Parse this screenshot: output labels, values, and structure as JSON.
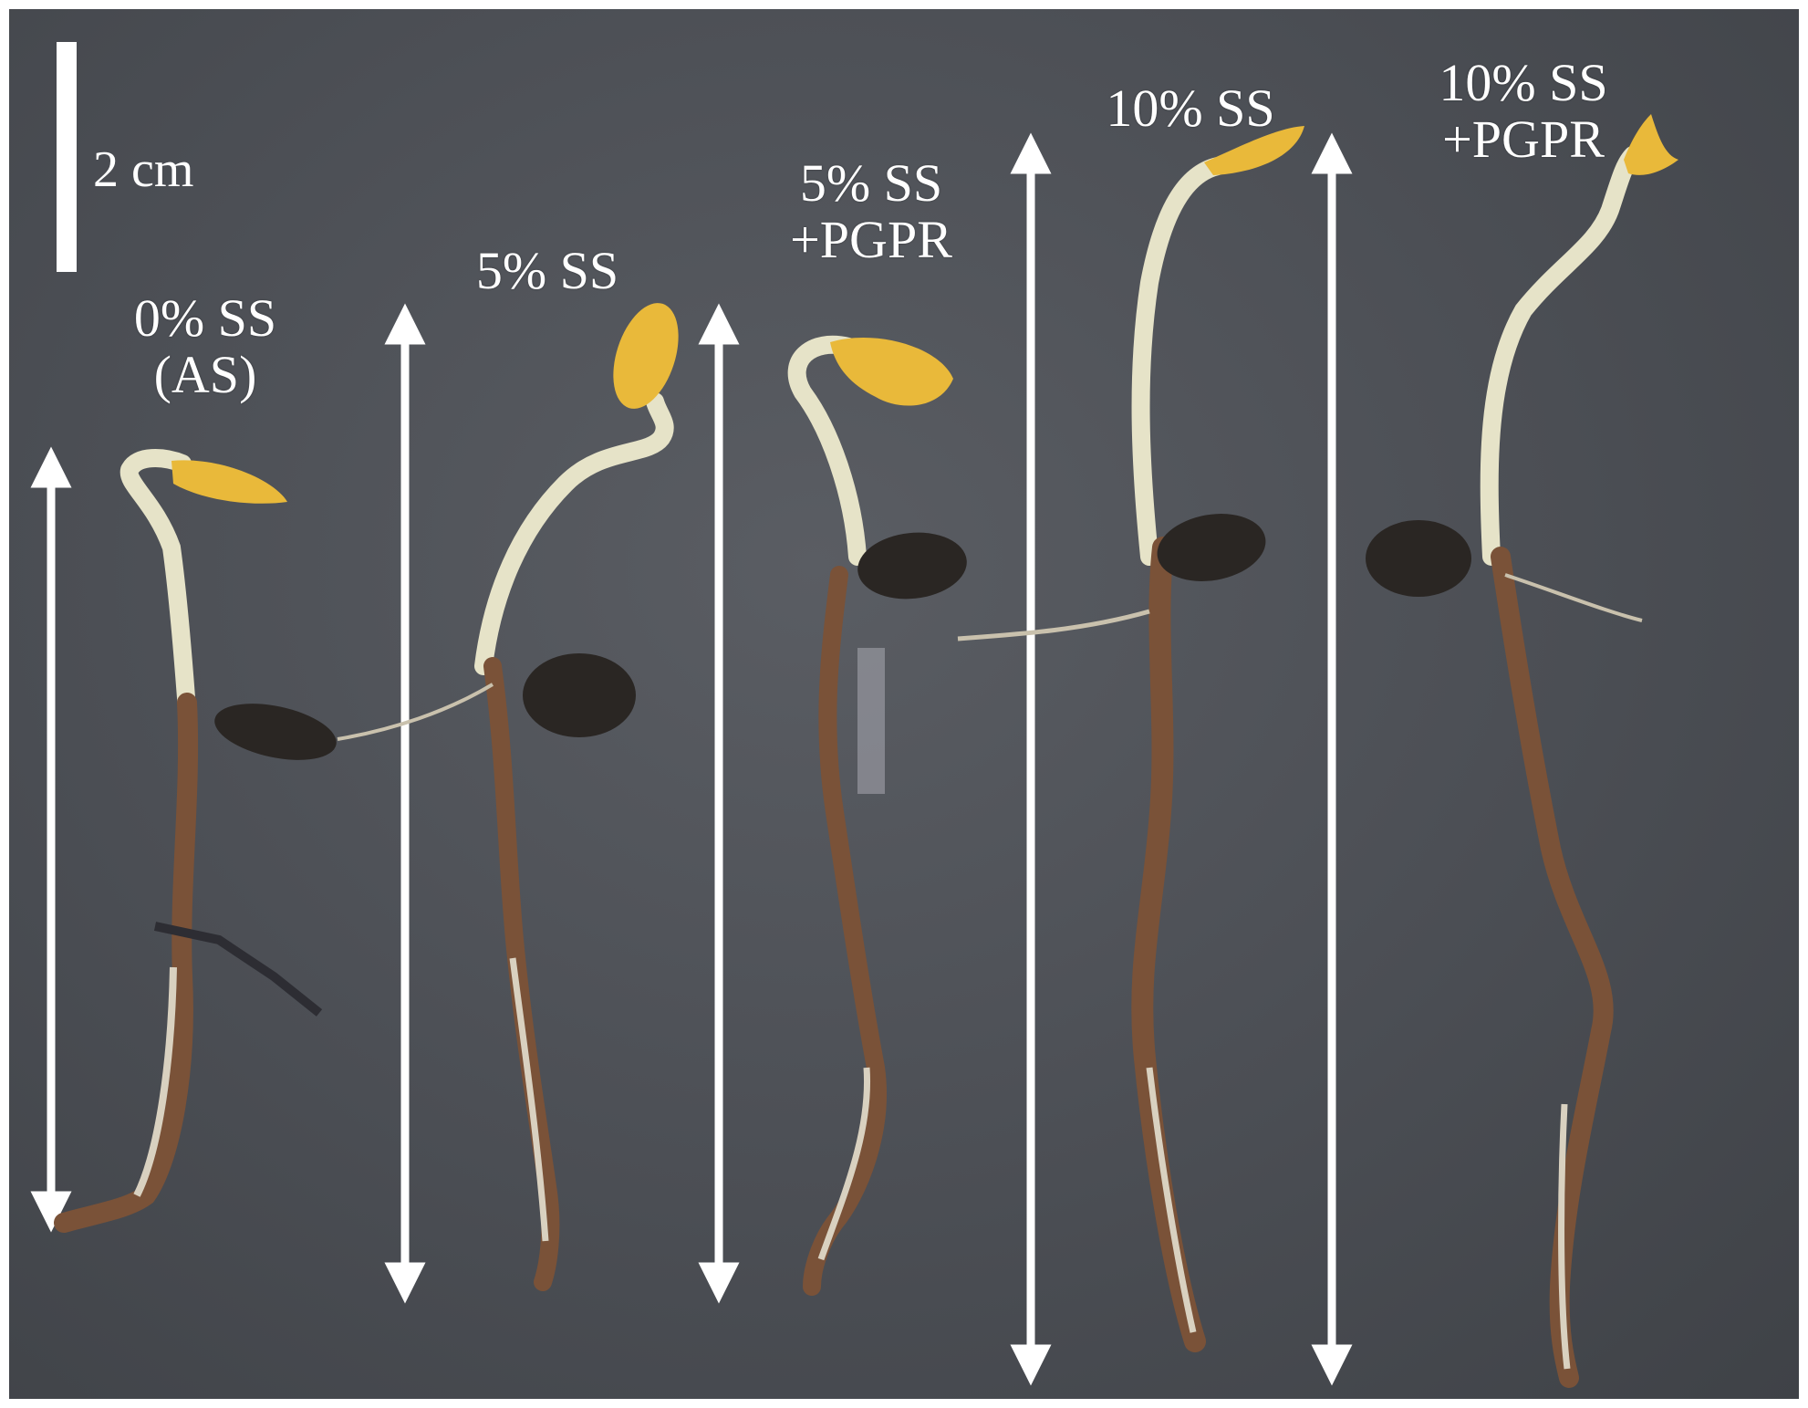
{
  "scale_bar": {
    "label": "2 cm"
  },
  "samples": [
    {
      "lines": [
        "0% SS",
        "(AS)"
      ]
    },
    {
      "lines": [
        "5% SS"
      ]
    },
    {
      "lines": [
        "5% SS",
        "+PGPR"
      ]
    },
    {
      "lines": [
        "10% SS"
      ]
    },
    {
      "lines": [
        "10% SS",
        "+PGPR"
      ]
    }
  ],
  "colors": {
    "background": "#4b4e54",
    "arrows": "#ffffff",
    "cotyledon": "#e9b93a",
    "hypocotyl": "#e6e3c8",
    "root": "#7a5238",
    "seed_coat": "#2a2623"
  }
}
